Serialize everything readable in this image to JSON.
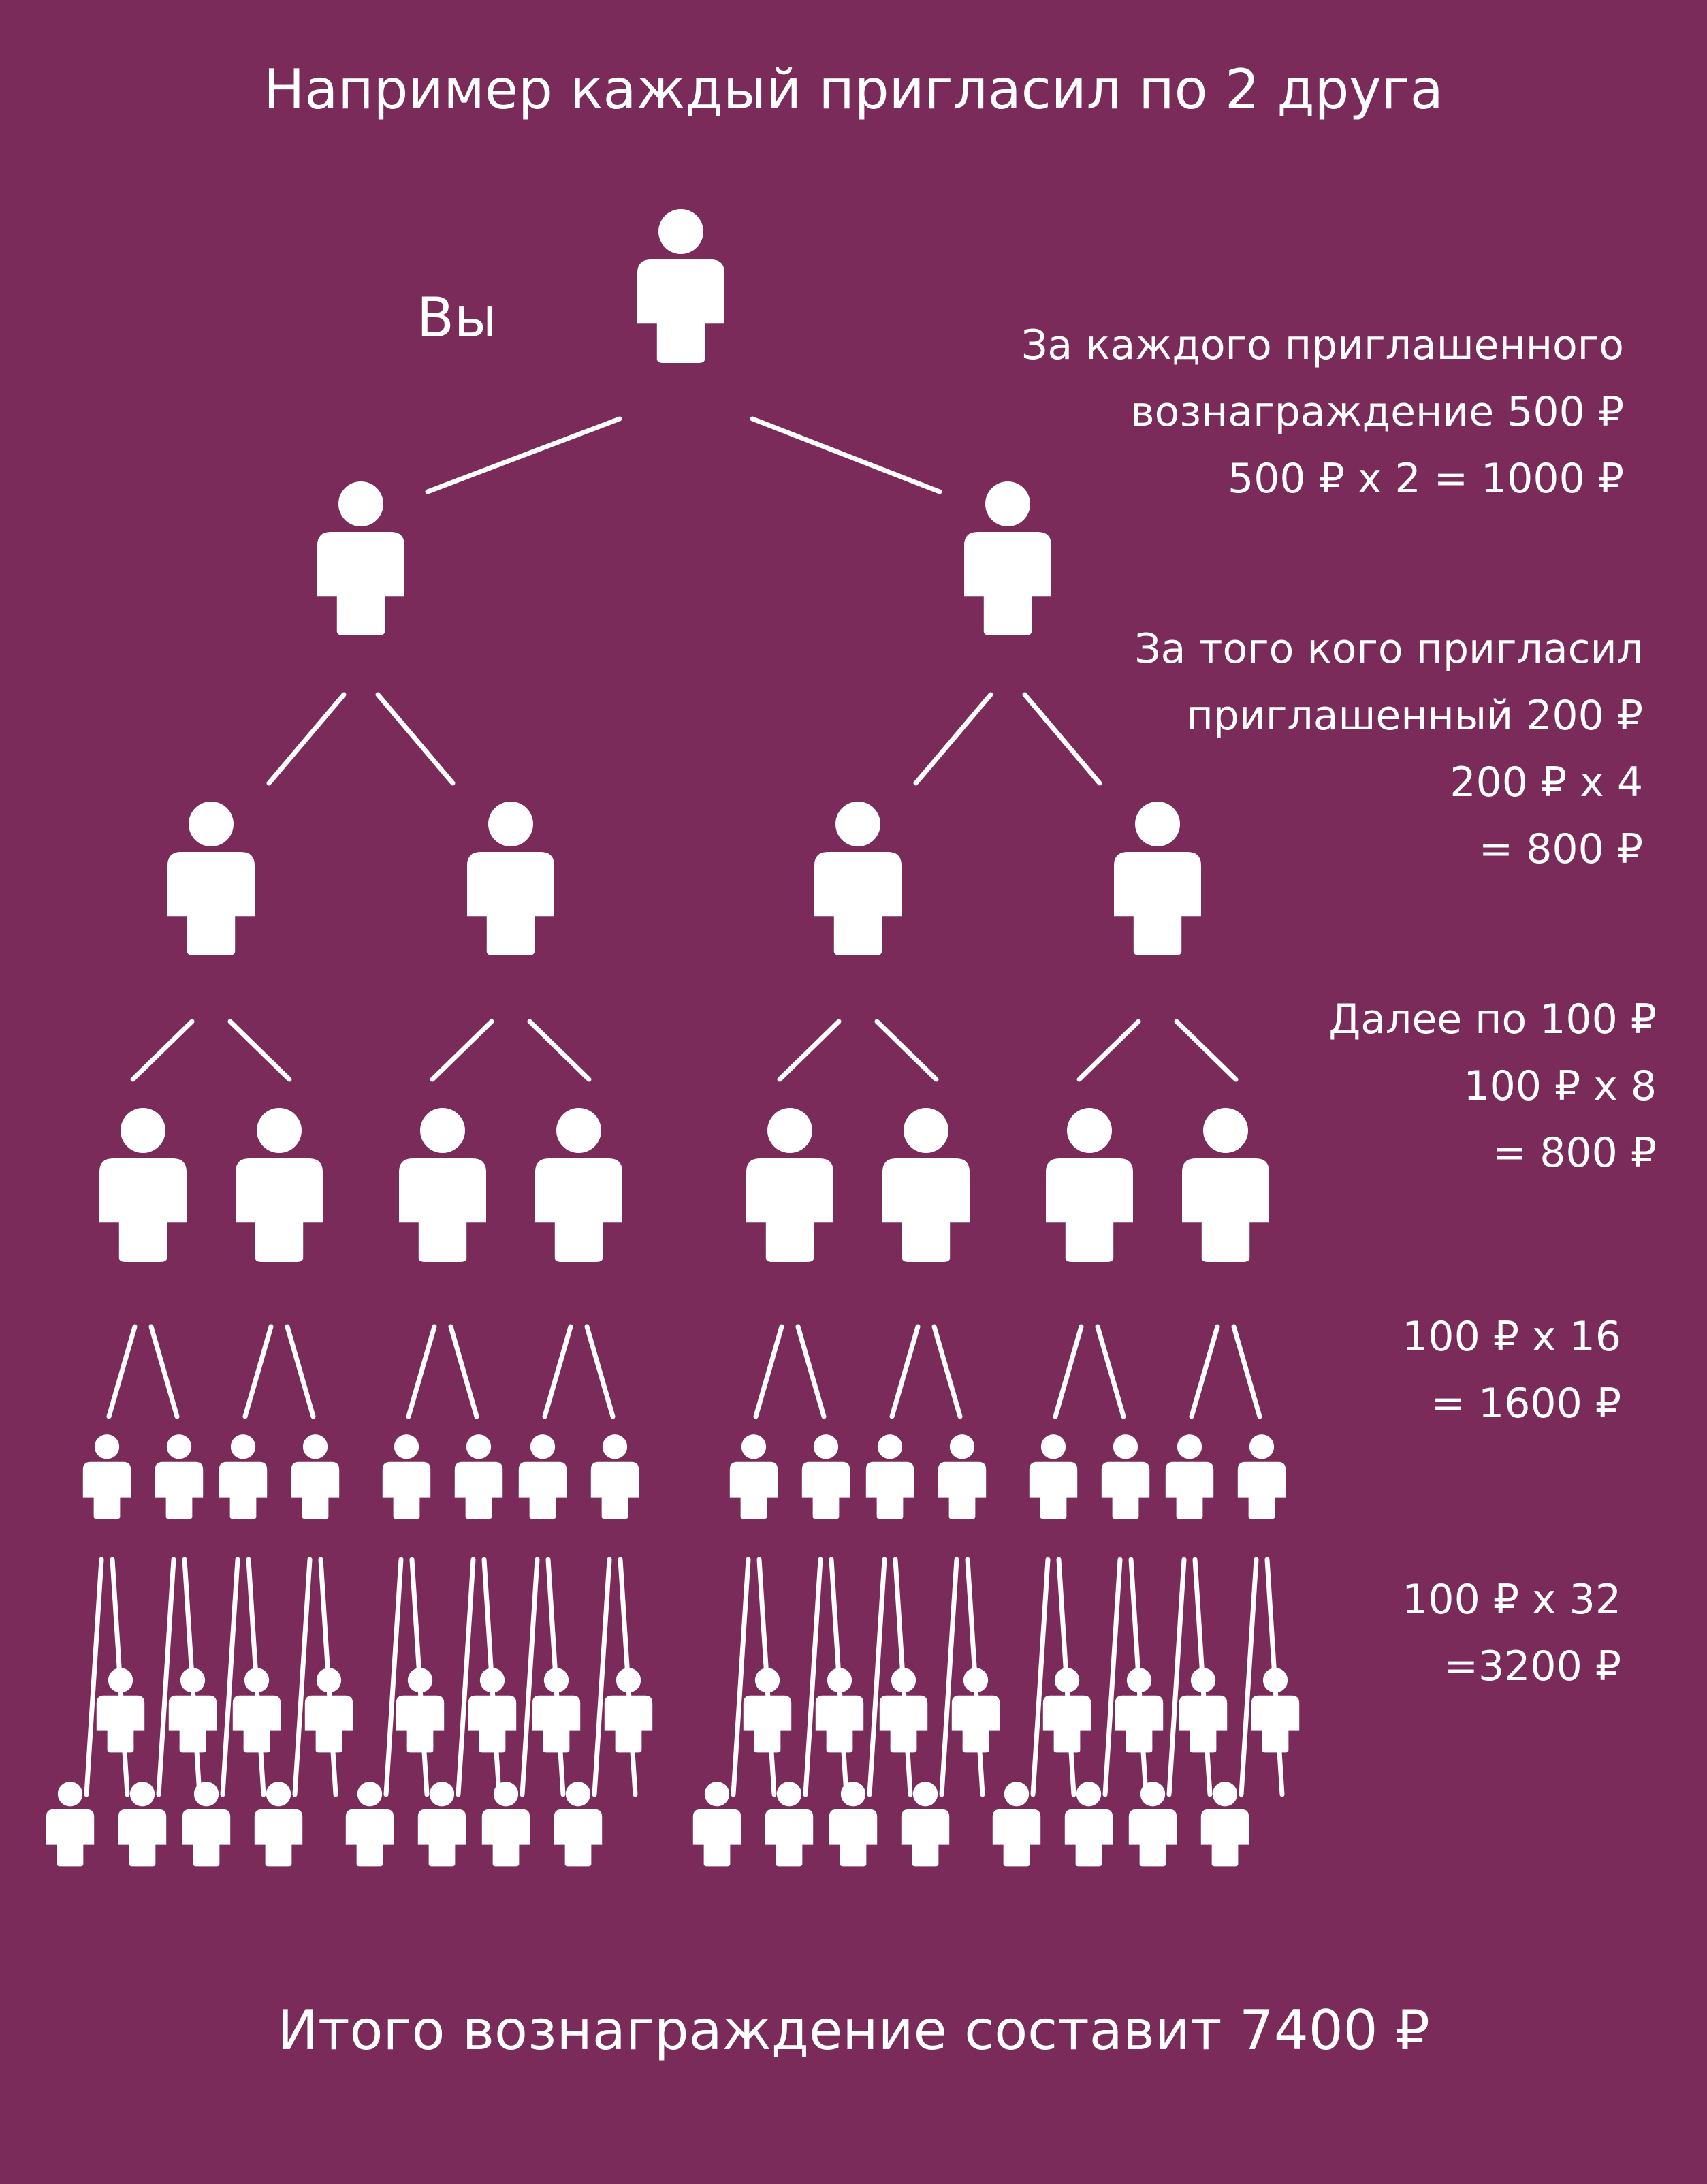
{
  "title": "Например каждый пригласил по 2 друга",
  "you_label": "Вы",
  "notes": {
    "level1": [
      "За каждого приглашенного",
      "вознаграждение 500 ₽",
      "500 ₽ х 2 = 1000 ₽"
    ],
    "level2": [
      "За того кого пригласил",
      "приглашенный 200 ₽",
      "200 ₽ х 4",
      "= 800 ₽"
    ],
    "level3": [
      "Далее по 100 ₽",
      "100 ₽ х 8",
      "= 800 ₽"
    ],
    "level4": [
      "100 ₽ х 16",
      "= 1600 ₽"
    ],
    "level5": [
      "100 ₽ х 32",
      "=3200 ₽"
    ]
  },
  "total": "Итого вознаграждение составит 7400 ₽",
  "colors": {
    "background": "#7a2b5a",
    "figure": "#ffffff"
  },
  "tree": {
    "branching": 2,
    "levels": 6,
    "icon": "person-icon"
  }
}
